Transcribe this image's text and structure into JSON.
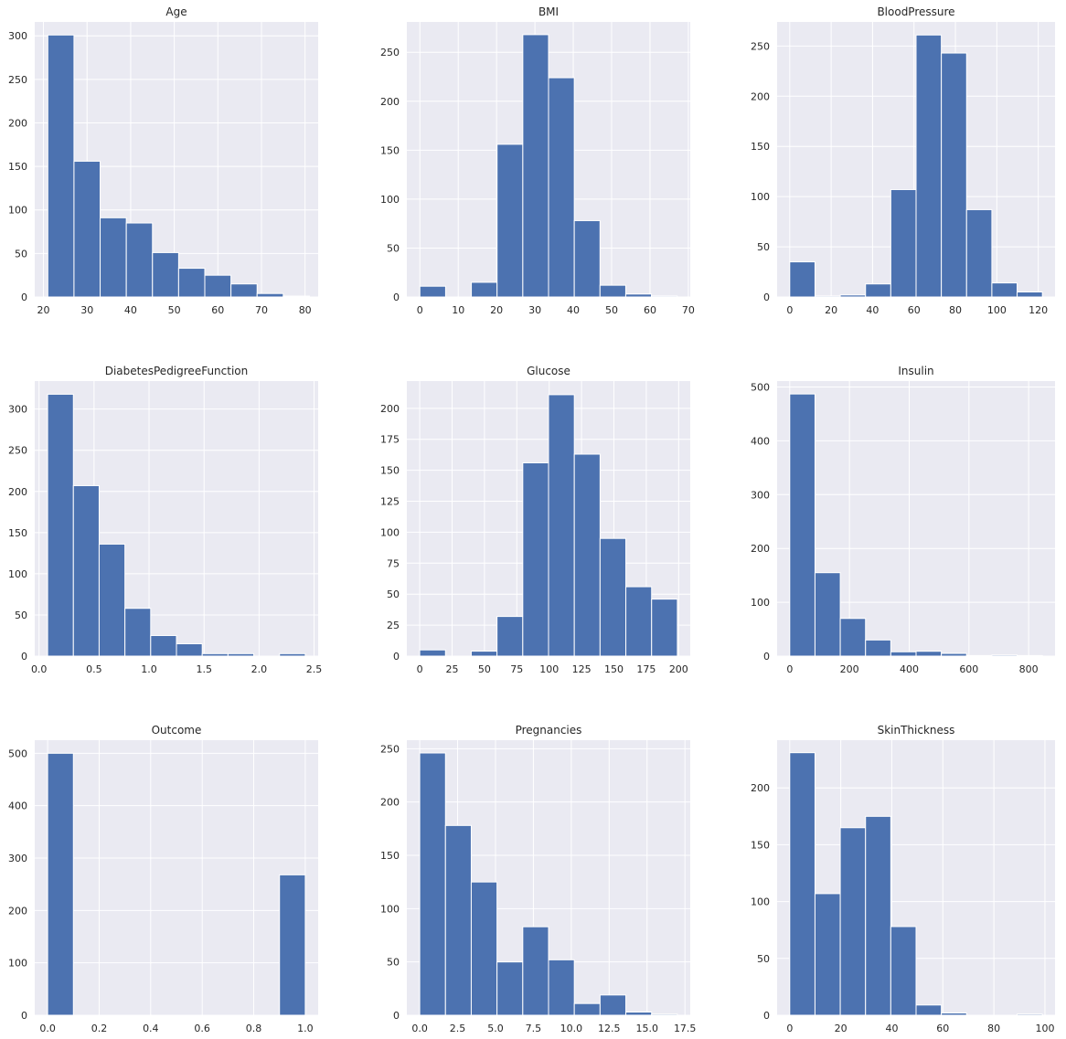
{
  "colors": {
    "bar": "#4c72b0",
    "panel_background": "#eaeaf2",
    "grid": "#ffffff",
    "text": "#262626"
  },
  "chart_data": [
    {
      "type": "bar",
      "title": "Age",
      "bin_edges": [
        21,
        27,
        33,
        39,
        45,
        51,
        57,
        63,
        69,
        75,
        81
      ],
      "values": [
        301,
        156,
        91,
        85,
        51,
        33,
        25,
        15,
        4,
        1
      ],
      "xticks": [
        20,
        30,
        40,
        50,
        60,
        70,
        80
      ],
      "xlim": [
        18,
        83
      ],
      "yticks": [
        0,
        50,
        100,
        150,
        200,
        250,
        300
      ],
      "ylim": [
        0,
        316
      ],
      "grid": true
    },
    {
      "type": "bar",
      "title": "BMI",
      "bin_edges": [
        0,
        6.71,
        13.42,
        20.13,
        26.84,
        33.55,
        40.26,
        46.97,
        53.68,
        60.39,
        67.1
      ],
      "values": [
        11,
        0,
        15,
        156,
        268,
        224,
        78,
        12,
        3,
        1
      ],
      "xticks": [
        0,
        10,
        20,
        30,
        40,
        50,
        60,
        70
      ],
      "xlim": [
        -3.4,
        70.5
      ],
      "yticks": [
        0,
        50,
        100,
        150,
        200,
        250
      ],
      "ylim": [
        0,
        281
      ],
      "grid": true
    },
    {
      "type": "bar",
      "title": "BloodPressure",
      "bin_edges": [
        0,
        12.2,
        24.4,
        36.6,
        48.8,
        61,
        73.2,
        85.4,
        97.6,
        109.8,
        122
      ],
      "values": [
        35,
        1,
        2,
        13,
        107,
        261,
        243,
        87,
        14,
        5
      ],
      "xticks": [
        0,
        20,
        40,
        60,
        80,
        100,
        120
      ],
      "xlim": [
        -6.1,
        128.1
      ],
      "yticks": [
        0,
        50,
        100,
        150,
        200,
        250
      ],
      "ylim": [
        0,
        274
      ],
      "grid": true
    },
    {
      "type": "bar",
      "title": "DiabetesPedigreeFunction",
      "bin_edges": [
        0.078,
        0.3122,
        0.5464,
        0.7806,
        1.0148,
        1.249,
        1.4832,
        1.7174,
        1.9516,
        2.1858,
        2.42
      ],
      "values": [
        318,
        207,
        136,
        58,
        25,
        15,
        3,
        3,
        0,
        3
      ],
      "xticks": [
        0.0,
        0.5,
        1.0,
        1.5,
        2.0,
        2.5
      ],
      "xlim": [
        -0.039,
        2.537
      ],
      "yticks": [
        0,
        50,
        100,
        150,
        200,
        250,
        300
      ],
      "ylim": [
        0,
        334
      ],
      "grid": true
    },
    {
      "type": "bar",
      "title": "Glucose",
      "bin_edges": [
        0,
        19.9,
        39.8,
        59.7,
        79.6,
        99.5,
        119.4,
        139.3,
        159.2,
        179.1,
        199
      ],
      "values": [
        5,
        0,
        4,
        32,
        156,
        211,
        163,
        95,
        56,
        46
      ],
      "xticks": [
        0,
        25,
        50,
        75,
        100,
        125,
        150,
        175,
        200
      ],
      "xlim": [
        -9.95,
        208.95
      ],
      "yticks": [
        0,
        25,
        50,
        75,
        100,
        125,
        150,
        175,
        200
      ],
      "ylim": [
        0,
        222
      ],
      "grid": true
    },
    {
      "type": "bar",
      "title": "Insulin",
      "bin_edges": [
        0,
        84.6,
        169.2,
        253.8,
        338.4,
        423,
        507.6,
        592.2,
        676.8,
        761.4,
        846
      ],
      "values": [
        487,
        155,
        70,
        30,
        8,
        9,
        5,
        1,
        2,
        1
      ],
      "xticks": [
        0,
        200,
        400,
        600,
        800
      ],
      "xlim": [
        -42.3,
        888.3
      ],
      "yticks": [
        0,
        100,
        200,
        300,
        400,
        500
      ],
      "ylim": [
        0,
        511
      ],
      "grid": true
    },
    {
      "type": "bar",
      "title": "Outcome",
      "bin_edges": [
        0,
        0.1,
        0.2,
        0.3,
        0.4,
        0.5,
        0.6,
        0.7,
        0.8,
        0.9,
        1.0
      ],
      "values": [
        500,
        0,
        0,
        0,
        0,
        0,
        0,
        0,
        0,
        268
      ],
      "xticks": [
        0.0,
        0.2,
        0.4,
        0.6,
        0.8,
        1.0
      ],
      "xlim": [
        -0.05,
        1.05
      ],
      "yticks": [
        0,
        100,
        200,
        300,
        400,
        500
      ],
      "ylim": [
        0,
        525
      ],
      "grid": true
    },
    {
      "type": "bar",
      "title": "Pregnancies",
      "bin_edges": [
        0,
        1.7,
        3.4,
        5.1,
        6.8,
        8.5,
        10.2,
        11.9,
        13.6,
        15.3,
        17
      ],
      "values": [
        246,
        178,
        125,
        50,
        83,
        52,
        11,
        19,
        3,
        1
      ],
      "xticks": [
        0.0,
        2.5,
        5.0,
        7.5,
        10.0,
        12.5,
        15.0,
        17.5
      ],
      "xlim": [
        -0.85,
        17.85
      ],
      "yticks": [
        0,
        50,
        100,
        150,
        200,
        250
      ],
      "ylim": [
        0,
        258
      ],
      "grid": true
    },
    {
      "type": "bar",
      "title": "SkinThickness",
      "bin_edges": [
        0,
        9.9,
        19.8,
        29.7,
        39.6,
        49.5,
        59.4,
        69.3,
        79.2,
        89.1,
        99
      ],
      "values": [
        231,
        107,
        165,
        175,
        78,
        9,
        2,
        0,
        0,
        1
      ],
      "xticks": [
        0,
        20,
        40,
        60,
        80,
        100
      ],
      "xlim": [
        -4.95,
        103.95
      ],
      "yticks": [
        0,
        50,
        100,
        150,
        200
      ],
      "ylim": [
        0,
        242
      ],
      "grid": true
    }
  ]
}
